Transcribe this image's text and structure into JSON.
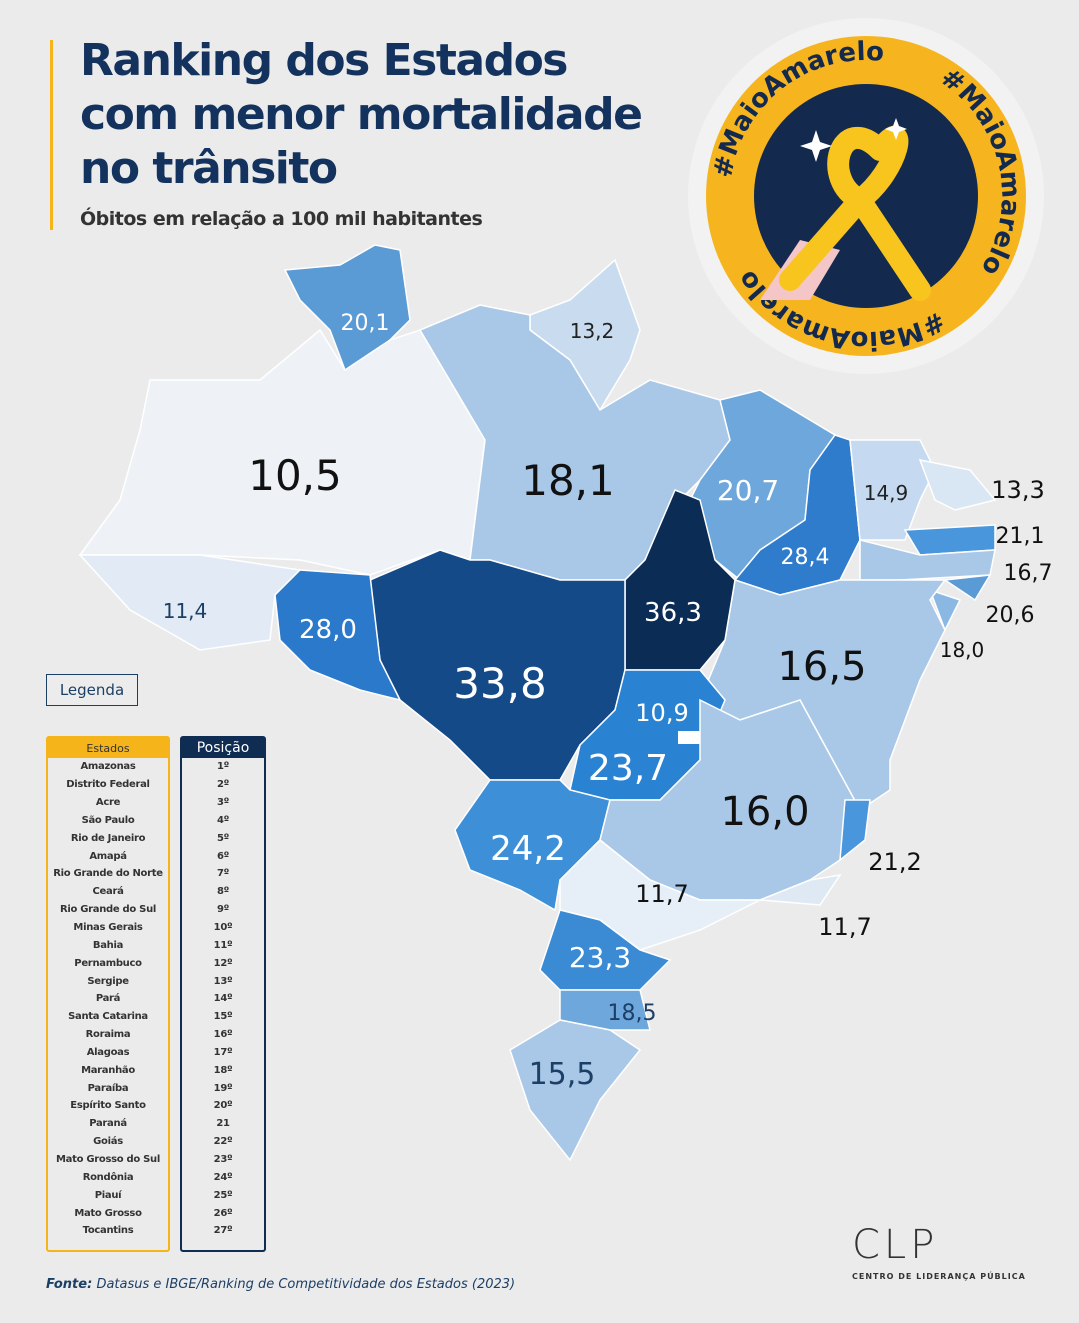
{
  "title": {
    "lines": [
      "Ranking dos Estados",
      "com menor mortalidade",
      "no trânsito"
    ],
    "subtitle": "Óbitos em relação a 100 mil habitantes"
  },
  "badge": {
    "hashtag": "#MaioAmarelo"
  },
  "legend": {
    "button": "Legenda",
    "col_states": "Estados",
    "col_position": "Posição",
    "rows": [
      [
        "Amazonas",
        "1º"
      ],
      [
        "Distrito Federal",
        "2º"
      ],
      [
        "Acre",
        "3º"
      ],
      [
        "São Paulo",
        "4º"
      ],
      [
        "Rio de Janeiro",
        "5º"
      ],
      [
        "Amapá",
        "6º"
      ],
      [
        "Rio Grande do Norte",
        "7º"
      ],
      [
        "Ceará",
        "8º"
      ],
      [
        "Rio Grande do Sul",
        "9º"
      ],
      [
        "Minas Gerais",
        "10º"
      ],
      [
        "Bahia",
        "11º"
      ],
      [
        "Pernambuco",
        "12º"
      ],
      [
        "Sergipe",
        "13º"
      ],
      [
        "Pará",
        "14º"
      ],
      [
        "Santa Catarina",
        "15º"
      ],
      [
        "Roraima",
        "16º"
      ],
      [
        "Alagoas",
        "17º"
      ],
      [
        "Maranhão",
        "18º"
      ],
      [
        "Paraíba",
        "19º"
      ],
      [
        "Espírito Santo",
        "20º"
      ],
      [
        "Paraná",
        "21"
      ],
      [
        "Goiás",
        "22º"
      ],
      [
        "Mato Grosso do Sul",
        "23º"
      ],
      [
        "Rondônia",
        "24º"
      ],
      [
        "Piauí",
        "25º"
      ],
      [
        "Mato Grosso",
        "26º"
      ],
      [
        "Tocantins",
        "27º"
      ]
    ]
  },
  "chart_data": {
    "type": "choropleth",
    "title": "Ranking dos Estados com menor mortalidade no trânsito",
    "unit": "Óbitos em relação a 100 mil habitantes",
    "states": [
      {
        "id": "RR",
        "value": "20,1"
      },
      {
        "id": "AP",
        "value": "13,2"
      },
      {
        "id": "AM",
        "value": "10,5"
      },
      {
        "id": "AC",
        "value": "11,4"
      },
      {
        "id": "PA",
        "value": "18,1"
      },
      {
        "id": "MA",
        "value": "20,7"
      },
      {
        "id": "PI",
        "value": "28,4"
      },
      {
        "id": "CE",
        "value": "14,9"
      },
      {
        "id": "RN",
        "value": "13,3"
      },
      {
        "id": "PB",
        "value": "21,1"
      },
      {
        "id": "PE",
        "value": "16,7"
      },
      {
        "id": "AL",
        "value": "20,6"
      },
      {
        "id": "SE",
        "value": "18,0"
      },
      {
        "id": "BA",
        "value": "16,5"
      },
      {
        "id": "TO",
        "value": "36,3"
      },
      {
        "id": "MT",
        "value": "33,8"
      },
      {
        "id": "RO",
        "value": "28,0"
      },
      {
        "id": "GO",
        "value": "23,7"
      },
      {
        "id": "DF",
        "value": "10,9"
      },
      {
        "id": "MS",
        "value": "24,2"
      },
      {
        "id": "MG",
        "value": "16,0"
      },
      {
        "id": "ES",
        "value": "21,2"
      },
      {
        "id": "RJ",
        "value": "11,7"
      },
      {
        "id": "SP",
        "value": "11,7"
      },
      {
        "id": "PR",
        "value": "23,3"
      },
      {
        "id": "SC",
        "value": "18,5"
      },
      {
        "id": "RS",
        "value": "15,5"
      }
    ]
  },
  "source": {
    "label": "Fonte:",
    "text": "Datasus e IBGE/Ranking de Competitividade dos Estados (2023)"
  },
  "logo": {
    "mark": "CLP",
    "subtitle": "CENTRO DE LIDERANÇA PÚBLICA"
  }
}
